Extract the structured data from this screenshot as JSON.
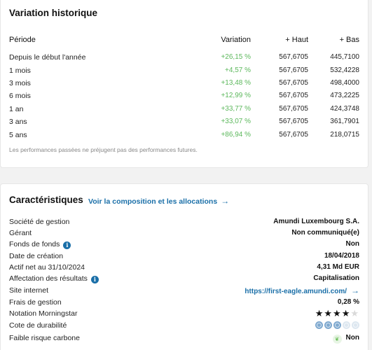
{
  "history": {
    "title": "Variation historique",
    "headers": {
      "period": "Période",
      "variation": "Variation",
      "high": "+ Haut",
      "low": "+ Bas"
    },
    "rows": [
      {
        "period": "Depuis le début l'année",
        "variation": "+26,15 %",
        "high": "567,6705",
        "low": "445,7100"
      },
      {
        "period": "1 mois",
        "variation": "+4,57 %",
        "high": "567,6705",
        "low": "532,4228"
      },
      {
        "period": "3 mois",
        "variation": "+13,48 %",
        "high": "567,6705",
        "low": "498,4000"
      },
      {
        "period": "6 mois",
        "variation": "+12,99 %",
        "high": "567,6705",
        "low": "473,2225"
      },
      {
        "period": "1 an",
        "variation": "+33,77 %",
        "high": "567,6705",
        "low": "424,3748"
      },
      {
        "period": "3 ans",
        "variation": "+33,07 %",
        "high": "567,6705",
        "low": "361,7901"
      },
      {
        "period": "5 ans",
        "variation": "+86,94 %",
        "high": "567,6705",
        "low": "218,0715"
      }
    ],
    "disclaimer": "Les performances passées ne préjugent pas des performances futures."
  },
  "characteristics": {
    "title": "Caractéristiques",
    "composition_link": "Voir la composition et les allocations",
    "rows": {
      "management_company": {
        "label": "Société de gestion",
        "value": "Amundi Luxembourg S.A."
      },
      "manager": {
        "label": "Gérant",
        "value": "Non communiqué(e)"
      },
      "fund_of_funds": {
        "label": "Fonds de fonds",
        "value": "Non"
      },
      "creation_date": {
        "label": "Date de création",
        "value": "18/04/2018"
      },
      "net_assets": {
        "label": "Actif net au 31/10/2024",
        "value": "4,31 Md EUR"
      },
      "income_allocation": {
        "label": "Affectation des résultats",
        "value": "Capitalisation"
      },
      "website": {
        "label": "Site internet",
        "value": "https://first-eagle.amundi.com/"
      },
      "fees": {
        "label": "Frais de gestion",
        "value": "0,28 %"
      },
      "morningstar": {
        "label": "Notation Morningstar",
        "rating": 4,
        "max": 5
      },
      "sustainability": {
        "label": "Cote de durabilité",
        "rating": 3,
        "max": 5
      },
      "low_carbon": {
        "label": "Faible risque carbone",
        "value": "Non"
      }
    }
  },
  "colors": {
    "positive": "#5cb85c",
    "link": "#1a6fa8",
    "globe_on": "#7fa9cf",
    "globe_off": "#dde7f0"
  },
  "icons": {
    "info": "info-icon",
    "arrow": "arrow-right-icon",
    "star": "star-icon",
    "globe": "globe-icon",
    "leaf": "leaf-icon"
  }
}
